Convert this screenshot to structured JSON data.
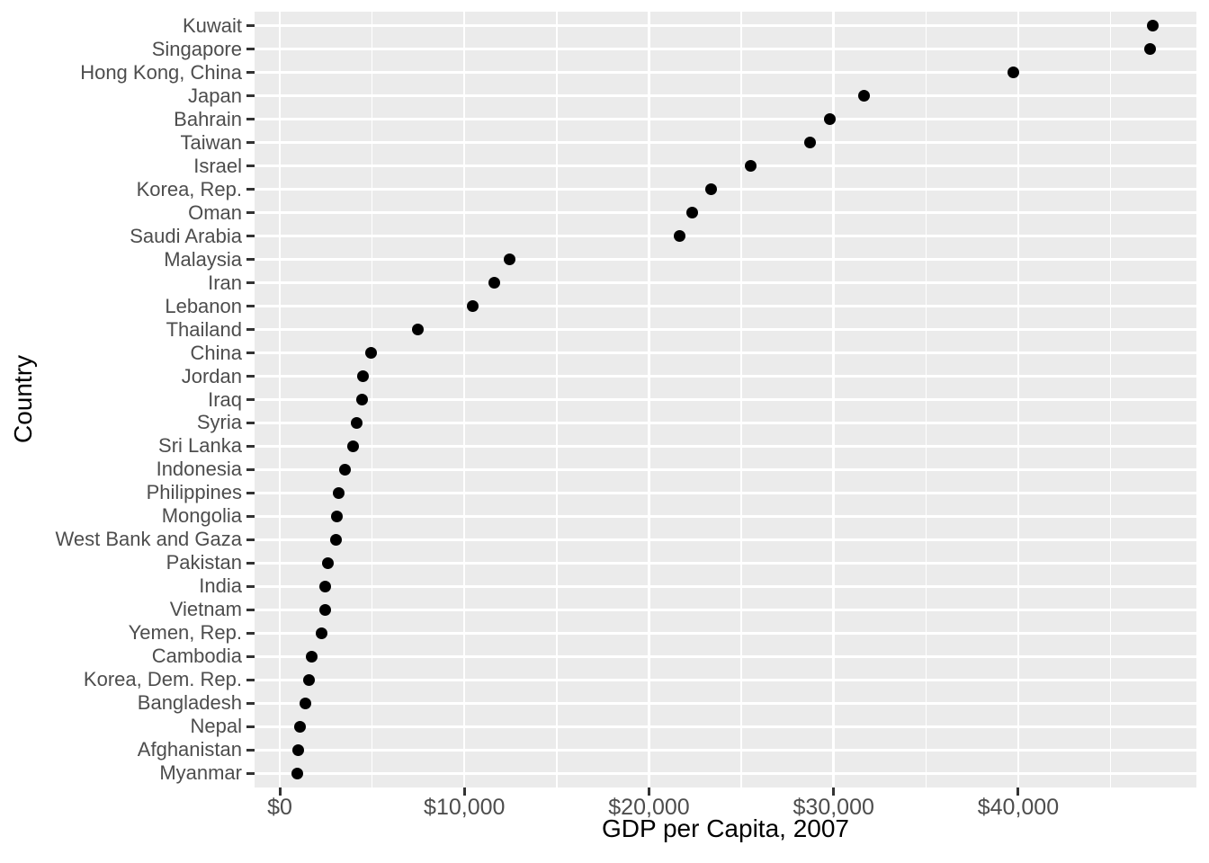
{
  "figure": {
    "background": "#FFFFFF",
    "panel_background": "#EBEBEB",
    "grid_color": "#FFFFFF",
    "point_color": "#000000",
    "axis_text_color": "#4D4D4D",
    "axis_title_color": "#000000",
    "tick_mark_color": "#333333"
  },
  "chart_data": {
    "type": "scatter",
    "variant": "cleveland-dot-plot",
    "title": "",
    "xlabel": "GDP per Capita, 2007",
    "ylabel": "Country",
    "legend": "none",
    "grid": {
      "major_x": true,
      "minor_x": true,
      "major_y": true,
      "minor_y": false
    },
    "xlim": [
      -1365,
      49650
    ],
    "x_tick_values": [
      0,
      10000,
      20000,
      30000,
      40000
    ],
    "x_tick_labels": [
      "$0",
      "$10,000",
      "$20,000",
      "$30,000",
      "$40,000"
    ],
    "x_minor_tick_values": [
      5000,
      15000,
      25000,
      35000,
      45000
    ],
    "categories": [
      "Kuwait",
      "Singapore",
      "Hong Kong, China",
      "Japan",
      "Bahrain",
      "Taiwan",
      "Israel",
      "Korea, Rep.",
      "Oman",
      "Saudi Arabia",
      "Malaysia",
      "Iran",
      "Lebanon",
      "Thailand",
      "China",
      "Jordan",
      "Iraq",
      "Syria",
      "Sri Lanka",
      "Indonesia",
      "Philippines",
      "Mongolia",
      "West Bank and Gaza",
      "Pakistan",
      "India",
      "Vietnam",
      "Yemen, Rep.",
      "Cambodia",
      "Korea, Dem. Rep.",
      "Bangladesh",
      "Nepal",
      "Afghanistan",
      "Myanmar"
    ],
    "values": [
      47306.99,
      47143.18,
      39724.98,
      31656.07,
      29796.05,
      28718.28,
      25523.28,
      23348.14,
      22316.19,
      21654.83,
      12451.66,
      11605.71,
      10461.06,
      7458.4,
      4959.11,
      4519.46,
      4471.06,
      4184.55,
      3970.1,
      3540.65,
      3190.48,
      3095.77,
      3025.35,
      2605.95,
      2452.21,
      2441.58,
      2280.77,
      1713.78,
      1593.06,
      1391.25,
      1091.36,
      974.58,
      944.0
    ]
  }
}
